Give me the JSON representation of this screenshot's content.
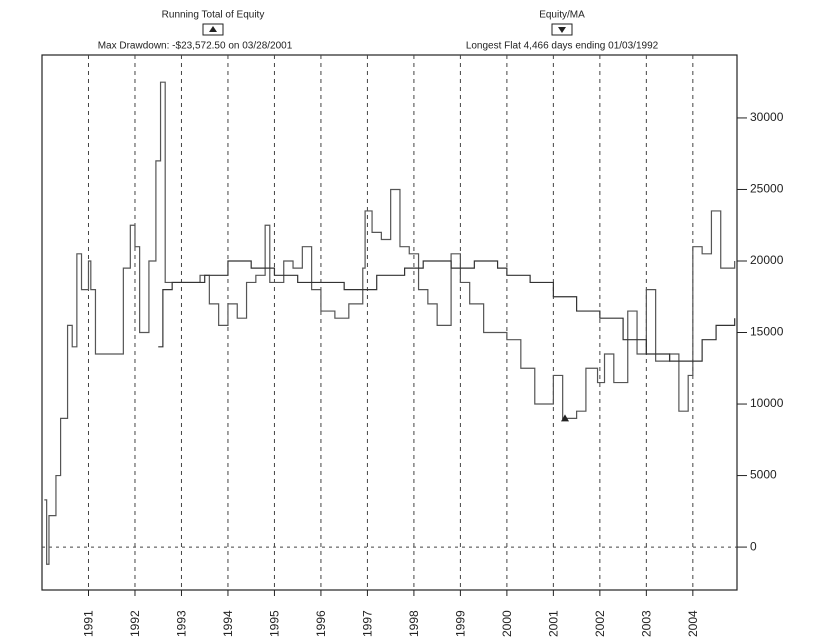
{
  "chart_data": {
    "type": "line",
    "series": [
      {
        "name": "Running Total of Equity",
        "color": "#555555",
        "x": [
          1990.05,
          1990.1,
          1990.15,
          1990.3,
          1990.4,
          1990.55,
          1990.65,
          1990.75,
          1990.85,
          1991.0,
          1991.05,
          1991.15,
          1991.6,
          1991.75,
          1991.9,
          1992.0,
          1992.1,
          1992.3,
          1992.45,
          1992.55,
          1992.65,
          1993.2,
          1993.4,
          1993.6,
          1993.8,
          1994.0,
          1994.2,
          1994.4,
          1994.6,
          1994.8,
          1994.9,
          1995.2,
          1995.4,
          1995.6,
          1995.8,
          1996.0,
          1996.3,
          1996.6,
          1996.9,
          1996.95,
          1997.1,
          1997.3,
          1997.5,
          1997.7,
          1997.9,
          1998.1,
          1998.3,
          1998.5,
          1998.8,
          1999.0,
          1999.2,
          1999.5,
          2000.0,
          2000.3,
          2000.6,
          2000.9,
          2001.0,
          2001.2,
          2001.5,
          2001.7,
          2001.95,
          2002.1,
          2002.3,
          2002.6,
          2002.8,
          2003.0,
          2003.2,
          2003.5,
          2003.7,
          2003.9,
          2004.0,
          2004.2,
          2004.4,
          2004.6,
          2004.9
        ],
        "values": [
          3300,
          -1200,
          2200,
          5000,
          9000,
          15500,
          14000,
          20500,
          18000,
          20000,
          18000,
          13500,
          13500,
          19500,
          22500,
          21000,
          15000,
          20000,
          27000,
          32500,
          18500,
          18500,
          19000,
          17000,
          15500,
          17000,
          16000,
          18500,
          19000,
          22500,
          18500,
          20000,
          19500,
          21000,
          18000,
          16500,
          16000,
          17000,
          19500,
          23500,
          22000,
          21500,
          25000,
          21000,
          20500,
          18000,
          17000,
          15500,
          20500,
          18500,
          17000,
          15000,
          14500,
          12500,
          10000,
          10000,
          12000,
          9000,
          9500,
          12500,
          11500,
          13500,
          11500,
          16500,
          13500,
          18000,
          13000,
          13500,
          9500,
          12000,
          21000,
          20500,
          23500,
          19500,
          20000
        ]
      },
      {
        "name": "Equity/MA",
        "color": "#333333",
        "x": [
          1992.5,
          1992.6,
          1992.8,
          1993.5,
          1994.0,
          1994.5,
          1995.0,
          1995.5,
          1996.0,
          1996.5,
          1996.9,
          1997.2,
          1997.8,
          1998.2,
          1998.8,
          1999.3,
          1999.8,
          2000.0,
          2000.5,
          2001.0,
          2001.5,
          2002.0,
          2002.5,
          2003.0,
          2003.5,
          2003.9,
          2004.2,
          2004.5,
          2004.9
        ],
        "values": [
          14000,
          18000,
          18500,
          19000,
          20000,
          19500,
          19000,
          18500,
          18500,
          18000,
          18000,
          19000,
          19500,
          20000,
          19500,
          20000,
          19500,
          19000,
          18500,
          17500,
          16500,
          16000,
          14500,
          13500,
          13000,
          13000,
          14500,
          15500,
          16000
        ]
      }
    ],
    "annotations": [
      "Max Drawdown: -$23,572.50 on 03/28/2001",
      "Longest Flat 4,466 days ending 01/03/1992"
    ],
    "drawdown_marker": {
      "x": 2001.25,
      "y": 9000
    },
    "xlim": [
      1990.0,
      2004.95
    ],
    "xticks": [
      1991,
      1992,
      1993,
      1994,
      1995,
      1996,
      1997,
      1998,
      1999,
      2000,
      2001,
      2002,
      2003,
      2004
    ],
    "ylim": [
      -3000,
      34400
    ],
    "yticks": [
      0,
      5000,
      10000,
      15000,
      20000,
      25000,
      30000
    ],
    "grid": true
  }
}
